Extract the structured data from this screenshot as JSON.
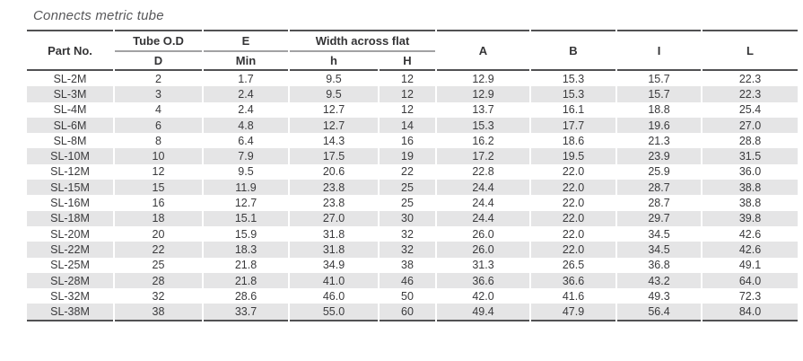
{
  "title": "Connects metric tube",
  "table": {
    "header": {
      "part_no": "Part No.",
      "tube_od": "Tube O.D",
      "e": "E",
      "width_across_flat": "Width across flat",
      "d": "D",
      "min": "Min",
      "h_small": "h",
      "h_cap": "H",
      "a": "A",
      "b": "B",
      "i": "I",
      "l": "L"
    },
    "rows": [
      [
        "SL-2M",
        "2",
        "1.7",
        "9.5",
        "12",
        "12.9",
        "15.3",
        "15.7",
        "22.3"
      ],
      [
        "SL-3M",
        "3",
        "2.4",
        "9.5",
        "12",
        "12.9",
        "15.3",
        "15.7",
        "22.3"
      ],
      [
        "SL-4M",
        "4",
        "2.4",
        "12.7",
        "12",
        "13.7",
        "16.1",
        "18.8",
        "25.4"
      ],
      [
        "SL-6M",
        "6",
        "4.8",
        "12.7",
        "14",
        "15.3",
        "17.7",
        "19.6",
        "27.0"
      ],
      [
        "SL-8M",
        "8",
        "6.4",
        "14.3",
        "16",
        "16.2",
        "18.6",
        "21.3",
        "28.8"
      ],
      [
        "SL-10M",
        "10",
        "7.9",
        "17.5",
        "19",
        "17.2",
        "19.5",
        "23.9",
        "31.5"
      ],
      [
        "SL-12M",
        "12",
        "9.5",
        "20.6",
        "22",
        "22.8",
        "22.0",
        "25.9",
        "36.0"
      ],
      [
        "SL-15M",
        "15",
        "11.9",
        "23.8",
        "25",
        "24.4",
        "22.0",
        "28.7",
        "38.8"
      ],
      [
        "SL-16M",
        "16",
        "12.7",
        "23.8",
        "25",
        "24.4",
        "22.0",
        "28.7",
        "38.8"
      ],
      [
        "SL-18M",
        "18",
        "15.1",
        "27.0",
        "30",
        "24.4",
        "22.0",
        "29.7",
        "39.8"
      ],
      [
        "SL-20M",
        "20",
        "15.9",
        "31.8",
        "32",
        "26.0",
        "22.0",
        "34.5",
        "42.6"
      ],
      [
        "SL-22M",
        "22",
        "18.3",
        "31.8",
        "32",
        "26.0",
        "22.0",
        "34.5",
        "42.6"
      ],
      [
        "SL-25M",
        "25",
        "21.8",
        "34.9",
        "38",
        "31.3",
        "26.5",
        "36.8",
        "49.1"
      ],
      [
        "SL-28M",
        "28",
        "21.8",
        "41.0",
        "46",
        "36.6",
        "36.6",
        "43.2",
        "64.0"
      ],
      [
        "SL-32M",
        "32",
        "28.6",
        "46.0",
        "50",
        "42.0",
        "41.6",
        "49.3",
        "72.3"
      ],
      [
        "SL-38M",
        "38",
        "33.7",
        "55.0",
        "60",
        "49.4",
        "47.9",
        "56.4",
        "84.0"
      ]
    ]
  },
  "colors": {
    "stripe_gray": "#e5e5e6",
    "rule_dark": "#515153",
    "rule_light_gray": "#a2a2a4",
    "text": "#3a3a3c",
    "title_text": "#58585a",
    "background": "#ffffff"
  }
}
